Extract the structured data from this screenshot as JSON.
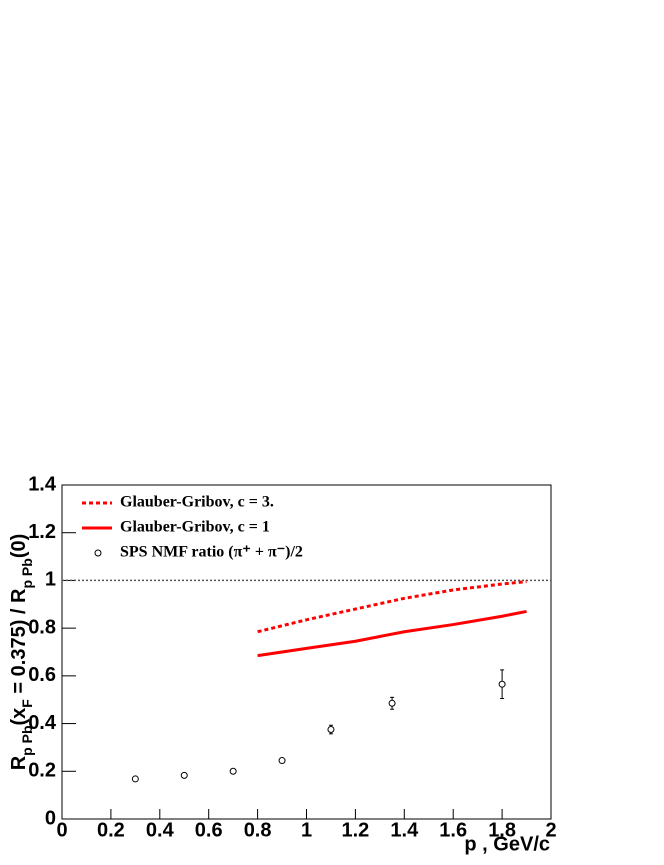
{
  "chart_data": {
    "type": "line",
    "x_label": "p , GeV/c",
    "y_label_parts": [
      {
        "text": "R"
      },
      {
        "text": "p Pb",
        "sub": true
      },
      {
        "text": "(x"
      },
      {
        "text": "F",
        "sub": true
      },
      {
        "text": " = 0.375) / R"
      },
      {
        "text": "p Pb",
        "sub": true
      },
      {
        "text": "(0)"
      }
    ],
    "xlim": [
      0,
      2
    ],
    "ylim": [
      0,
      1.4
    ],
    "xticks": [
      0,
      0.2,
      0.4,
      0.6,
      0.8,
      1,
      1.2,
      1.4,
      1.6,
      1.8,
      2
    ],
    "yticks": [
      0,
      0.2,
      0.4,
      0.6,
      0.8,
      1,
      1.2,
      1.4
    ],
    "reference_line": 1,
    "series": [
      {
        "name": "Glauber-Gribov, c = 3.",
        "color": "#ff0000",
        "style": "dashed",
        "x": [
          0.8,
          1.0,
          1.2,
          1.4,
          1.6,
          1.8,
          1.9
        ],
        "values": [
          0.785,
          0.835,
          0.88,
          0.925,
          0.96,
          0.985,
          0.995
        ]
      },
      {
        "name": "Glauber-Gribov, c = 1",
        "color": "#ff0000",
        "style": "solid",
        "x": [
          0.8,
          1.0,
          1.2,
          1.4,
          1.6,
          1.8,
          1.9
        ],
        "values": [
          0.685,
          0.715,
          0.745,
          0.785,
          0.815,
          0.85,
          0.87
        ]
      },
      {
        "name": "SPS NMF ratio (π⁺ + π⁻)/2",
        "color": "#000000",
        "style": "markers",
        "x": [
          0.3,
          0.5,
          0.7,
          0.9,
          1.1,
          1.35,
          1.8
        ],
        "values": [
          0.168,
          0.183,
          0.2,
          0.245,
          0.375,
          0.485,
          0.565
        ],
        "errors": [
          0.006,
          0.006,
          0.007,
          0.008,
          0.018,
          0.025,
          0.06
        ]
      }
    ]
  }
}
